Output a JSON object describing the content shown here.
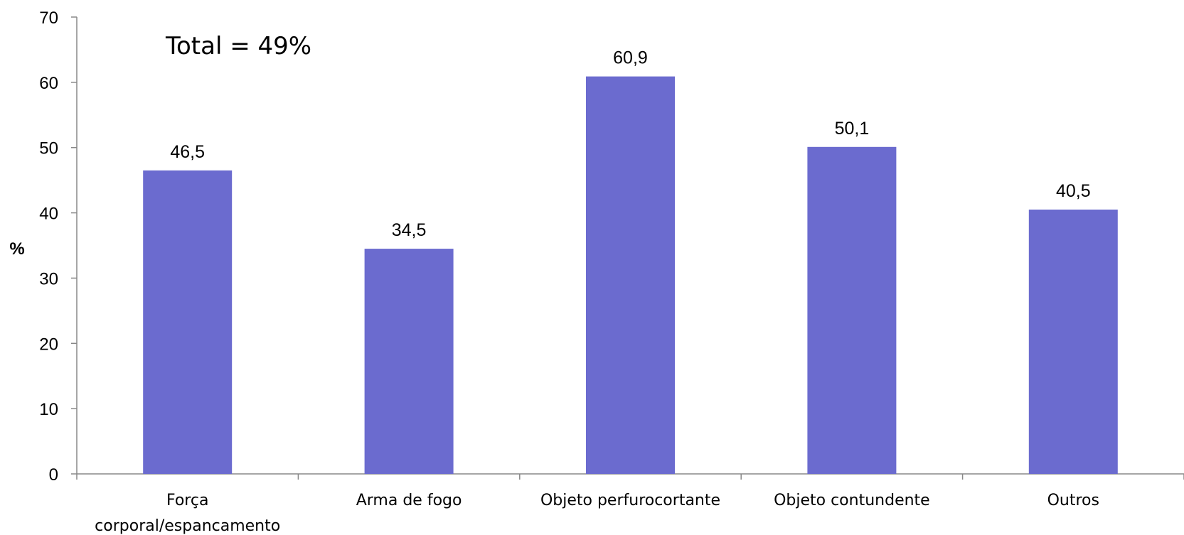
{
  "chart_data": {
    "type": "bar",
    "categories": [
      "Força\ncorporal/espancamento",
      "Arma de fogo",
      "Objeto perfurocortante",
      "Objeto contundente",
      "Outros"
    ],
    "values": [
      46.5,
      34.5,
      60.9,
      50.1,
      40.5
    ],
    "value_labels": [
      "46,5",
      "34,5",
      "60,9",
      "50,1",
      "40,5"
    ],
    "title": "",
    "xlabel": "",
    "ylabel": "%",
    "ylim": [
      0,
      70
    ],
    "yticks": [
      0,
      10,
      20,
      30,
      40,
      50,
      60,
      70
    ],
    "annotation": "Total = 49%",
    "bar_color": "#6B6BCF",
    "grid": false,
    "legend": "none"
  }
}
